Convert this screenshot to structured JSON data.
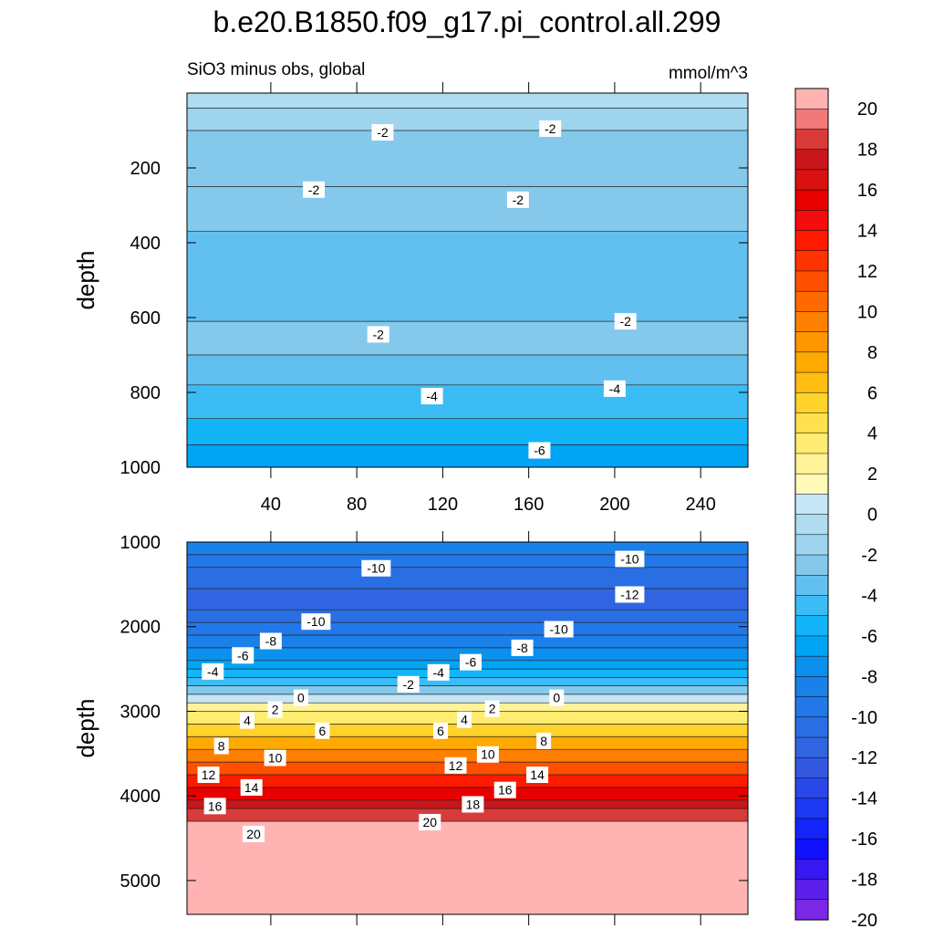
{
  "chart_data": {
    "type": "contour",
    "title": "b.e20.B1850.f09_g17.pi_control.all.299",
    "subtitle": "SiO3 minus obs, global",
    "units": "mmol/m^3",
    "panels": [
      {
        "name": "upper",
        "ylabel": "depth",
        "xlim": [
          1,
          262
        ],
        "ylim": [
          0,
          1000
        ],
        "xticks": [
          40,
          80,
          120,
          160,
          200,
          240
        ],
        "yticks": [
          200,
          400,
          600,
          800,
          1000
        ],
        "bands": [
          {
            "y": [
              0,
              40
            ],
            "value": 0
          },
          {
            "y": [
              40,
              100
            ],
            "value": -1
          },
          {
            "y": [
              100,
              250
            ],
            "value": -2
          },
          {
            "y": [
              250,
              370
            ],
            "value": -2
          },
          {
            "y": [
              370,
              610
            ],
            "value": -3
          },
          {
            "y": [
              610,
              700
            ],
            "value": -2
          },
          {
            "y": [
              700,
              780
            ],
            "value": -3
          },
          {
            "y": [
              780,
              870
            ],
            "value": -4
          },
          {
            "y": [
              870,
              940
            ],
            "value": -5
          },
          {
            "y": [
              940,
              1000
            ],
            "value": -6
          }
        ],
        "contour_labels": [
          {
            "x": 92,
            "y": 105,
            "text": "-2"
          },
          {
            "x": 170,
            "y": 95,
            "text": "-2"
          },
          {
            "x": 60,
            "y": 258,
            "text": "-2"
          },
          {
            "x": 155,
            "y": 285,
            "text": "-2"
          },
          {
            "x": 90,
            "y": 645,
            "text": "-2"
          },
          {
            "x": 205,
            "y": 610,
            "text": "-2"
          },
          {
            "x": 115,
            "y": 810,
            "text": "-4"
          },
          {
            "x": 200,
            "y": 790,
            "text": "-4"
          },
          {
            "x": 165,
            "y": 955,
            "text": "-6"
          }
        ]
      },
      {
        "name": "lower",
        "ylabel": "depth",
        "xlim": [
          1,
          262
        ],
        "ylim": [
          1000,
          5400
        ],
        "yticks": [
          1000,
          2000,
          3000,
          4000,
          5000
        ],
        "bands": [
          {
            "y": [
              1000,
              1150
            ],
            "value": -8
          },
          {
            "y": [
              1150,
              1300
            ],
            "value": -9
          },
          {
            "y": [
              1300,
              1550
            ],
            "value": -10
          },
          {
            "y": [
              1550,
              1800
            ],
            "value": -11
          },
          {
            "y": [
              1800,
              1950
            ],
            "value": -10
          },
          {
            "y": [
              1950,
              2100
            ],
            "value": -9
          },
          {
            "y": [
              2100,
              2250
            ],
            "value": -8
          },
          {
            "y": [
              2250,
              2400
            ],
            "value": -7
          },
          {
            "y": [
              2400,
              2500
            ],
            "value": -6
          },
          {
            "y": [
              2500,
              2600
            ],
            "value": -5
          },
          {
            "y": [
              2600,
              2700
            ],
            "value": -4
          },
          {
            "y": [
              2700,
              2800
            ],
            "value": -2
          },
          {
            "y": [
              2800,
              2900
            ],
            "value": 1
          },
          {
            "y": [
              2900,
              3000
            ],
            "value": 3
          },
          {
            "y": [
              3000,
              3150
            ],
            "value": 4
          },
          {
            "y": [
              3150,
              3300
            ],
            "value": 6
          },
          {
            "y": [
              3300,
              3450
            ],
            "value": 8
          },
          {
            "y": [
              3450,
              3600
            ],
            "value": 10
          },
          {
            "y": [
              3600,
              3750
            ],
            "value": 12
          },
          {
            "y": [
              3750,
              3900
            ],
            "value": 14
          },
          {
            "y": [
              3900,
              4050
            ],
            "value": 16
          },
          {
            "y": [
              4050,
              4150
            ],
            "value": 18
          },
          {
            "y": [
              4150,
              4300
            ],
            "value": 19
          },
          {
            "y": [
              4300,
              5400
            ],
            "value": 21
          }
        ],
        "contour_labels": [
          {
            "x": 89,
            "y": 1310,
            "text": "-10"
          },
          {
            "x": 207,
            "y": 1200,
            "text": "-10"
          },
          {
            "x": 207,
            "y": 1620,
            "text": "-12"
          },
          {
            "x": 61,
            "y": 1940,
            "text": "-10"
          },
          {
            "x": 174,
            "y": 2030,
            "text": "-10"
          },
          {
            "x": 40,
            "y": 2170,
            "text": "-8"
          },
          {
            "x": 157,
            "y": 2250,
            "text": "-8"
          },
          {
            "x": 27,
            "y": 2340,
            "text": "-6"
          },
          {
            "x": 133,
            "y": 2420,
            "text": "-6"
          },
          {
            "x": 13,
            "y": 2530,
            "text": "-4"
          },
          {
            "x": 118,
            "y": 2540,
            "text": "-4"
          },
          {
            "x": 104,
            "y": 2680,
            "text": "-2"
          },
          {
            "x": 54,
            "y": 2840,
            "text": "0"
          },
          {
            "x": 173,
            "y": 2840,
            "text": "0"
          },
          {
            "x": 42,
            "y": 2980,
            "text": "2"
          },
          {
            "x": 143,
            "y": 2970,
            "text": "2"
          },
          {
            "x": 29,
            "y": 3110,
            "text": "4"
          },
          {
            "x": 130,
            "y": 3100,
            "text": "4"
          },
          {
            "x": 64,
            "y": 3230,
            "text": "6"
          },
          {
            "x": 119,
            "y": 3230,
            "text": "6"
          },
          {
            "x": 17,
            "y": 3410,
            "text": "8"
          },
          {
            "x": 167,
            "y": 3350,
            "text": "8"
          },
          {
            "x": 42,
            "y": 3550,
            "text": "10"
          },
          {
            "x": 141,
            "y": 3510,
            "text": "10"
          },
          {
            "x": 11,
            "y": 3750,
            "text": "12"
          },
          {
            "x": 126,
            "y": 3640,
            "text": "12"
          },
          {
            "x": 31,
            "y": 3900,
            "text": "14"
          },
          {
            "x": 164,
            "y": 3750,
            "text": "14"
          },
          {
            "x": 14,
            "y": 4120,
            "text": "16"
          },
          {
            "x": 149,
            "y": 3930,
            "text": "16"
          },
          {
            "x": 134,
            "y": 4100,
            "text": "18"
          },
          {
            "x": 32,
            "y": 4450,
            "text": "20"
          },
          {
            "x": 114,
            "y": 4310,
            "text": "20"
          }
        ]
      }
    ],
    "colorbar": {
      "levels": [
        -20,
        -18,
        -16,
        -14,
        -12,
        -10,
        -8,
        -6,
        -4,
        -2,
        0,
        2,
        4,
        6,
        8,
        10,
        12,
        14,
        16,
        18,
        20
      ],
      "tick_labels": [
        "20",
        "18",
        "16",
        "14",
        "12",
        "10",
        "8",
        "6",
        "4",
        "2",
        "0",
        "-2",
        "-4",
        "-6",
        "-8",
        "-10",
        "-12",
        "-14",
        "-16",
        "-18",
        "-20"
      ],
      "colors_top_to_bottom": [
        "#ffb3b3",
        "#f07a7a",
        "#d93a3a",
        "#c8161a",
        "#db1010",
        "#e60000",
        "#f30d0d",
        "#ff1a00",
        "#ff3300",
        "#ff5000",
        "#ff6a00",
        "#ff8000",
        "#ff9600",
        "#ffaa00",
        "#ffbe10",
        "#ffd22c",
        "#ffe14f",
        "#ffec70",
        "#fff298",
        "#fffab8",
        "#c6e6f6",
        "#b0dcf2",
        "#9ed4ee",
        "#84c9ec",
        "#62c0f0",
        "#3cbcf4",
        "#14b4f8",
        "#00a4f4",
        "#0c90ee",
        "#1a80ea",
        "#2278e8",
        "#2a6ee4",
        "#3064e0",
        "#3558e0",
        "#2a48ea",
        "#1c38f2",
        "#1424fa",
        "#1010ff",
        "#3618f0",
        "#5a20ea",
        "#7a28e6"
      ]
    }
  }
}
